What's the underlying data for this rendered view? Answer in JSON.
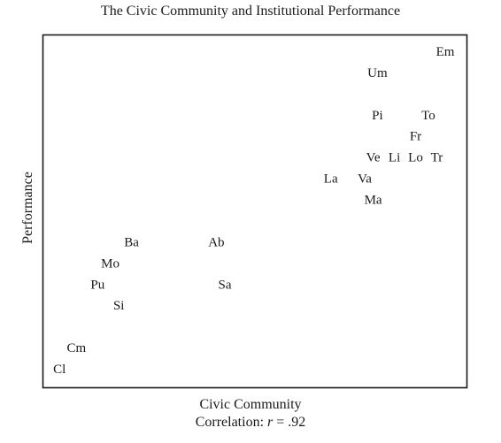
{
  "chart_data": {
    "type": "scatter",
    "title": "The Civic Community and Institutional Performance",
    "xlabel": "Civic Community",
    "ylabel": "Performance",
    "annotation": {
      "prefix": "Correlation: ",
      "symbol": "r",
      "value": " = .92"
    },
    "grid": false,
    "ticks": false,
    "xlim": [
      0,
      100
    ],
    "ylim": [
      0,
      100
    ],
    "points": [
      {
        "label": "Em",
        "x": 95,
        "y": 95
      },
      {
        "label": "Um",
        "x": 79,
        "y": 89
      },
      {
        "label": "Pi",
        "x": 79,
        "y": 77
      },
      {
        "label": "To",
        "x": 91,
        "y": 77
      },
      {
        "label": "Fr",
        "x": 88,
        "y": 71
      },
      {
        "label": "Ve",
        "x": 78,
        "y": 65
      },
      {
        "label": "Li",
        "x": 83,
        "y": 65
      },
      {
        "label": "Lo",
        "x": 88,
        "y": 65
      },
      {
        "label": "Tr",
        "x": 93,
        "y": 65
      },
      {
        "label": "La",
        "x": 68,
        "y": 59
      },
      {
        "label": "Va",
        "x": 76,
        "y": 59
      },
      {
        "label": "Ma",
        "x": 78,
        "y": 53
      },
      {
        "label": "Ba",
        "x": 21,
        "y": 41
      },
      {
        "label": "Ab",
        "x": 41,
        "y": 41
      },
      {
        "label": "Mo",
        "x": 16,
        "y": 35
      },
      {
        "label": "Pu",
        "x": 13,
        "y": 29
      },
      {
        "label": "Sa",
        "x": 43,
        "y": 29
      },
      {
        "label": "Si",
        "x": 18,
        "y": 23
      },
      {
        "label": "Cm",
        "x": 8,
        "y": 11
      },
      {
        "label": "Cl",
        "x": 4,
        "y": 5
      }
    ]
  }
}
